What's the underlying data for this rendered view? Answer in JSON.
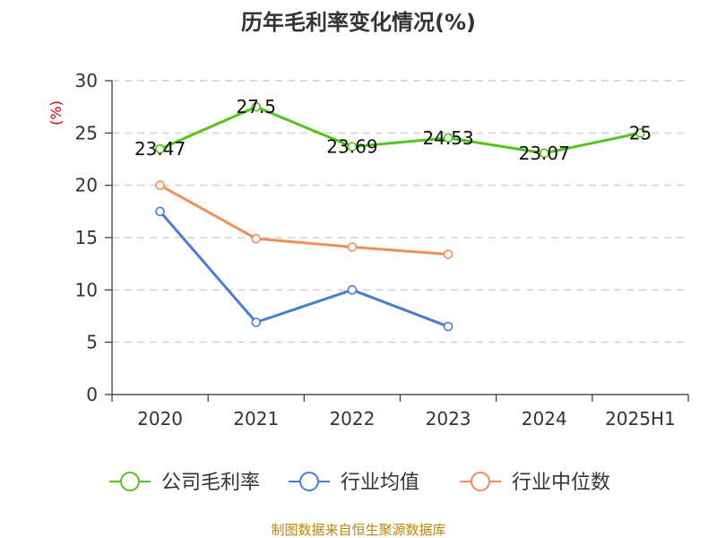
{
  "chart_data": {
    "type": "line",
    "title": "历年毛利率变化情况(%)",
    "ylabel": "(%)",
    "xlabel": "",
    "categories": [
      "2020",
      "2021",
      "2022",
      "2023",
      "2024",
      "2025H1"
    ],
    "ylim": [
      0,
      30
    ],
    "yticks": [
      0,
      5,
      10,
      15,
      20,
      25,
      30
    ],
    "grid": true,
    "legend_position": "bottom",
    "series": [
      {
        "name": "公司毛利率",
        "color": "#52c41a",
        "values": [
          23.47,
          27.5,
          23.69,
          24.53,
          23.07,
          25
        ],
        "labels": [
          "23.47",
          "27.5",
          "23.69",
          "24.53",
          "23.07",
          "25"
        ]
      },
      {
        "name": "行业均值",
        "color": "#4a7bd6",
        "values": [
          17.5,
          6.9,
          10.0,
          6.5,
          null,
          null
        ]
      },
      {
        "name": "行业中位数",
        "color": "#f28c5b",
        "values": [
          20.0,
          14.9,
          14.1,
          13.4,
          null,
          null
        ]
      }
    ],
    "source": "制图数据来自恒生聚源数据库"
  }
}
